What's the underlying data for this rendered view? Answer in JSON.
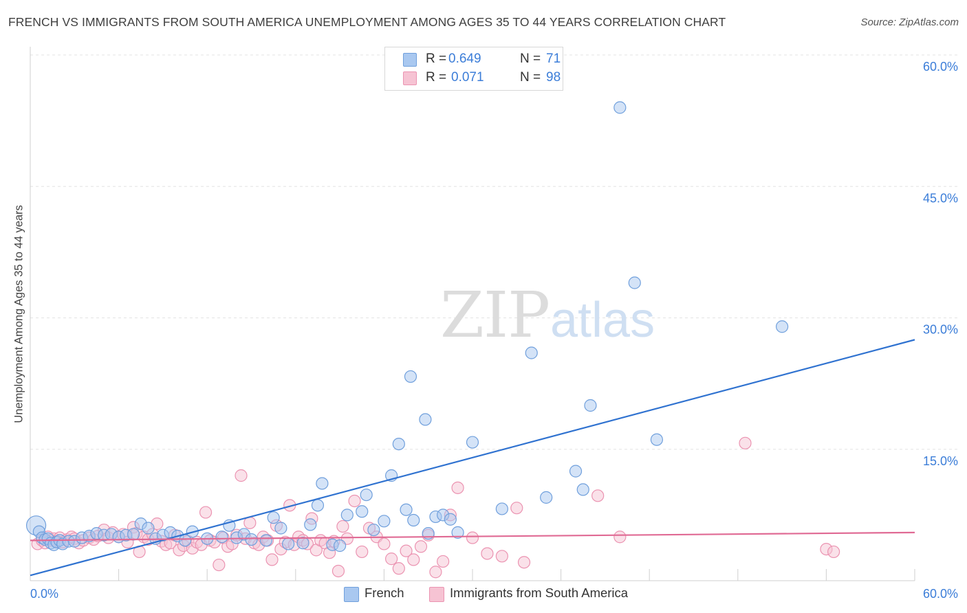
{
  "header": {
    "title": "FRENCH VS IMMIGRANTS FROM SOUTH AMERICA UNEMPLOYMENT AMONG AGES 35 TO 44 YEARS CORRELATION CHART",
    "source": "Source: ZipAtlas.com"
  },
  "watermark": {
    "zip": "ZIP",
    "atlas": "atlas"
  },
  "legend": {
    "r_label": "R =",
    "n_label": "N =",
    "french": {
      "r": "0.649",
      "n": "71"
    },
    "immigrants": {
      "r": "0.071",
      "n": "98"
    }
  },
  "chart_data": {
    "type": "scatter",
    "ylabel": "Unemployment Among Ages 35 to 44 years",
    "xlim": [
      0,
      60
    ],
    "ylim": [
      0,
      60
    ],
    "x_tick_labels": [
      "0.0%",
      "60.0%"
    ],
    "y_tick_labels": [
      "15.0%",
      "30.0%",
      "45.0%",
      "60.0%"
    ],
    "y_ticks": [
      15,
      30,
      45,
      60
    ],
    "grid": true,
    "legend_position": "top-center",
    "series": [
      {
        "name": "French",
        "color": "#a9c8f0",
        "stroke": "#6f9fdc",
        "trend_color": "#2f72d0",
        "trend": {
          "x": [
            0,
            60
          ],
          "y": [
            0.6,
            27.5
          ]
        },
        "points": [
          [
            0.4,
            6.3
          ],
          [
            0.6,
            5.6
          ],
          [
            0.8,
            4.9
          ],
          [
            1.0,
            4.7
          ],
          [
            1.2,
            4.8
          ],
          [
            1.4,
            4.3
          ],
          [
            1.6,
            4.1
          ],
          [
            1.8,
            4.4
          ],
          [
            2.0,
            4.6
          ],
          [
            2.2,
            4.2
          ],
          [
            2.6,
            4.5
          ],
          [
            3.0,
            4.5
          ],
          [
            3.5,
            4.9
          ],
          [
            4.0,
            5.1
          ],
          [
            4.5,
            5.4
          ],
          [
            5.0,
            5.2
          ],
          [
            5.5,
            5.3
          ],
          [
            6.0,
            5.0
          ],
          [
            6.5,
            5.2
          ],
          [
            7.0,
            5.3
          ],
          [
            7.5,
            6.5
          ],
          [
            8.0,
            6.0
          ],
          [
            8.5,
            4.8
          ],
          [
            9.0,
            5.2
          ],
          [
            9.5,
            5.5
          ],
          [
            10.0,
            5.1
          ],
          [
            10.5,
            4.6
          ],
          [
            11.0,
            5.6
          ],
          [
            12.0,
            4.8
          ],
          [
            13.0,
            5.0
          ],
          [
            13.5,
            6.3
          ],
          [
            14.0,
            4.9
          ],
          [
            14.5,
            5.3
          ],
          [
            15.0,
            4.7
          ],
          [
            16.0,
            4.6
          ],
          [
            16.5,
            7.2
          ],
          [
            17.0,
            6.0
          ],
          [
            17.5,
            4.2
          ],
          [
            18.5,
            4.3
          ],
          [
            19.0,
            6.4
          ],
          [
            19.5,
            8.6
          ],
          [
            19.8,
            11.1
          ],
          [
            20.5,
            4.1
          ],
          [
            21.0,
            4.0
          ],
          [
            21.5,
            7.5
          ],
          [
            22.5,
            7.9
          ],
          [
            22.8,
            9.8
          ],
          [
            23.3,
            5.8
          ],
          [
            24.0,
            6.8
          ],
          [
            24.5,
            12.0
          ],
          [
            25.0,
            15.6
          ],
          [
            25.5,
            8.1
          ],
          [
            25.8,
            23.3
          ],
          [
            26.0,
            6.9
          ],
          [
            26.8,
            18.4
          ],
          [
            27.0,
            5.4
          ],
          [
            27.5,
            7.3
          ],
          [
            28.0,
            7.5
          ],
          [
            28.5,
            7.0
          ],
          [
            29.0,
            5.5
          ],
          [
            30.0,
            15.8
          ],
          [
            32.0,
            8.2
          ],
          [
            34.0,
            26.0
          ],
          [
            35.0,
            9.5
          ],
          [
            37.0,
            12.5
          ],
          [
            37.5,
            10.4
          ],
          [
            38.0,
            20.0
          ],
          [
            40.0,
            54.0
          ],
          [
            41.0,
            34.0
          ],
          [
            42.5,
            16.1
          ],
          [
            51.0,
            29.0
          ]
        ]
      },
      {
        "name": "Immigrants from South America",
        "color": "#f6c3d3",
        "stroke": "#eb93b1",
        "trend_color": "#e06a94",
        "trend": {
          "x": [
            0,
            60
          ],
          "y": [
            4.6,
            5.5
          ]
        },
        "points": [
          [
            0.5,
            4.2
          ],
          [
            0.8,
            4.6
          ],
          [
            1.0,
            4.3
          ],
          [
            1.2,
            5.0
          ],
          [
            1.4,
            4.6
          ],
          [
            1.6,
            4.8
          ],
          [
            1.8,
            4.5
          ],
          [
            2.0,
            4.9
          ],
          [
            2.2,
            4.4
          ],
          [
            2.5,
            4.7
          ],
          [
            2.8,
            5.0
          ],
          [
            3.0,
            4.8
          ],
          [
            3.3,
            4.3
          ],
          [
            3.6,
            4.6
          ],
          [
            4.0,
            4.9
          ],
          [
            4.3,
            4.7
          ],
          [
            4.6,
            5.1
          ],
          [
            5.0,
            5.8
          ],
          [
            5.3,
            4.9
          ],
          [
            5.6,
            5.5
          ],
          [
            6.0,
            5.0
          ],
          [
            6.3,
            5.3
          ],
          [
            6.6,
            4.4
          ],
          [
            7.0,
            6.1
          ],
          [
            7.2,
            5.4
          ],
          [
            7.4,
            3.3
          ],
          [
            7.7,
            5.0
          ],
          [
            8.0,
            4.7
          ],
          [
            8.3,
            5.3
          ],
          [
            8.6,
            6.5
          ],
          [
            8.9,
            4.5
          ],
          [
            9.2,
            4.1
          ],
          [
            9.5,
            4.3
          ],
          [
            9.8,
            5.2
          ],
          [
            10.1,
            3.5
          ],
          [
            10.4,
            4.0
          ],
          [
            10.7,
            4.5
          ],
          [
            11.0,
            3.7
          ],
          [
            11.3,
            4.4
          ],
          [
            11.6,
            4.1
          ],
          [
            11.9,
            7.8
          ],
          [
            12.2,
            4.6
          ],
          [
            12.5,
            4.4
          ],
          [
            12.8,
            1.8
          ],
          [
            13.1,
            4.9
          ],
          [
            13.4,
            3.9
          ],
          [
            13.7,
            4.2
          ],
          [
            14.0,
            5.2
          ],
          [
            14.3,
            12.0
          ],
          [
            14.6,
            4.8
          ],
          [
            14.9,
            6.6
          ],
          [
            15.2,
            4.3
          ],
          [
            15.5,
            4.1
          ],
          [
            15.8,
            5.0
          ],
          [
            16.1,
            4.6
          ],
          [
            16.4,
            2.4
          ],
          [
            16.7,
            6.3
          ],
          [
            17.0,
            3.6
          ],
          [
            17.3,
            4.4
          ],
          [
            17.6,
            8.6
          ],
          [
            17.9,
            4.1
          ],
          [
            18.2,
            5.0
          ],
          [
            18.5,
            4.6
          ],
          [
            18.8,
            4.2
          ],
          [
            19.1,
            7.1
          ],
          [
            19.4,
            3.5
          ],
          [
            19.7,
            4.6
          ],
          [
            20.0,
            4.3
          ],
          [
            20.3,
            3.2
          ],
          [
            20.6,
            4.5
          ],
          [
            20.9,
            1.1
          ],
          [
            21.2,
            6.2
          ],
          [
            21.5,
            4.8
          ],
          [
            22.0,
            9.1
          ],
          [
            22.5,
            3.3
          ],
          [
            23.0,
            6.0
          ],
          [
            23.5,
            5.0
          ],
          [
            24.0,
            4.2
          ],
          [
            24.5,
            2.5
          ],
          [
            25.0,
            1.4
          ],
          [
            25.5,
            3.4
          ],
          [
            26.0,
            2.4
          ],
          [
            26.5,
            3.9
          ],
          [
            27.0,
            5.2
          ],
          [
            27.5,
            1.0
          ],
          [
            28.0,
            2.2
          ],
          [
            28.5,
            7.5
          ],
          [
            29.0,
            10.6
          ],
          [
            30.0,
            4.9
          ],
          [
            31.0,
            3.1
          ],
          [
            32.0,
            2.8
          ],
          [
            33.0,
            8.3
          ],
          [
            33.5,
            2.1
          ],
          [
            38.5,
            9.7
          ],
          [
            40.0,
            5.0
          ],
          [
            48.5,
            15.7
          ],
          [
            54.0,
            3.6
          ],
          [
            54.5,
            3.3
          ]
        ]
      }
    ]
  },
  "bottom_legend": [
    {
      "label": "French"
    },
    {
      "label": "Immigrants from South America"
    }
  ]
}
